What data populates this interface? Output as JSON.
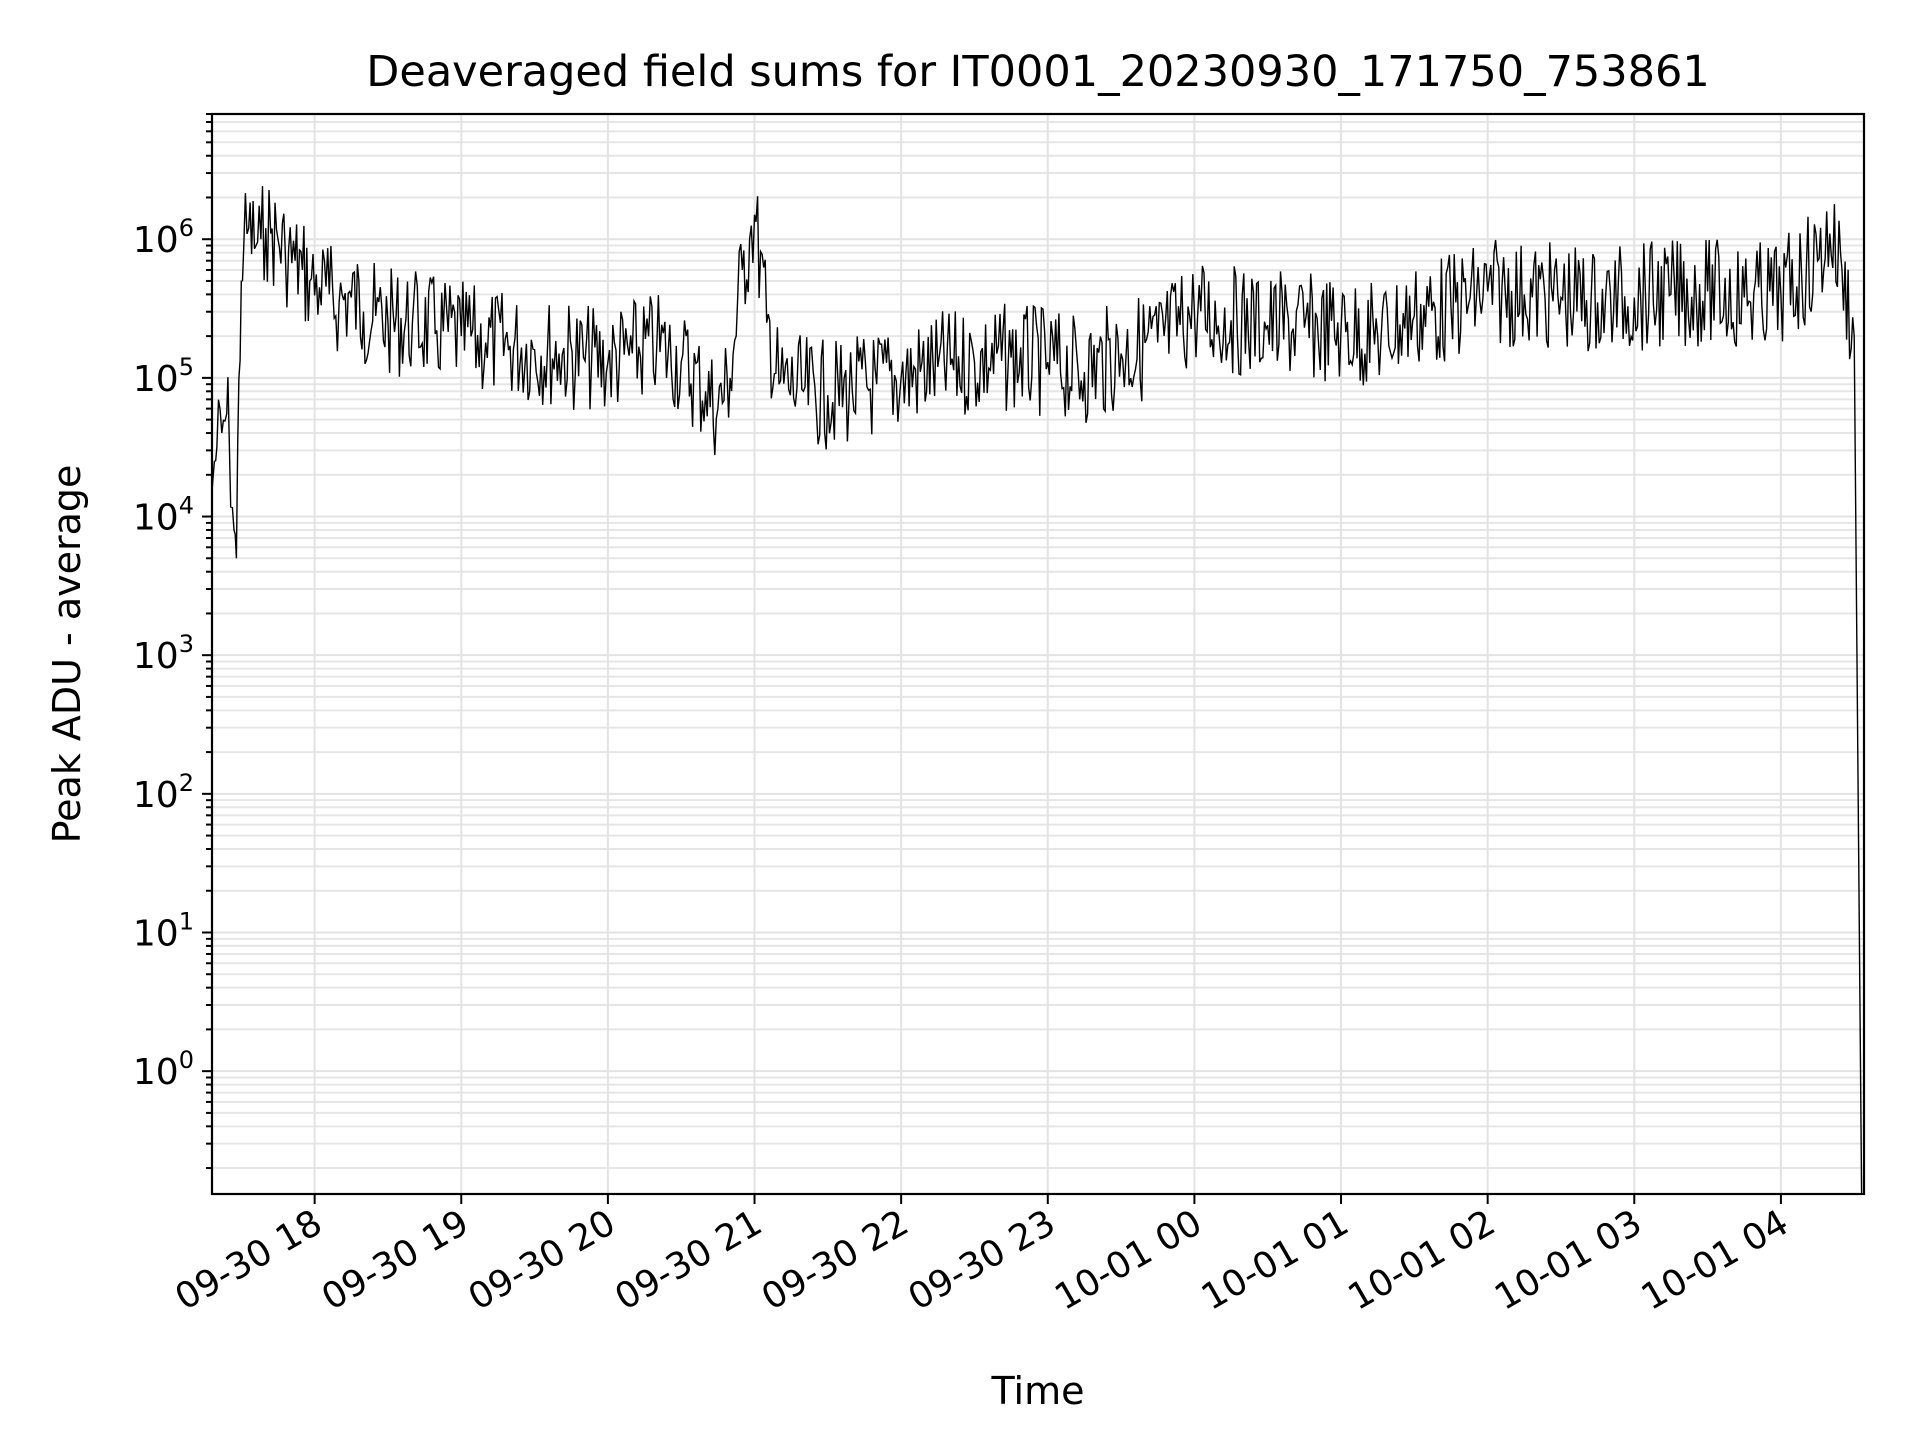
{
  "chart_data": {
    "type": "line",
    "title": "Deaveraged field sums for IT0001_20230930_171750_753861",
    "xlabel": "Time",
    "ylabel": "Peak ADU - average",
    "y_scale": "log",
    "ylim": [
      0.13,
      8000000
    ],
    "xlim": [
      "09-30 17:18",
      "10-01 04:34"
    ],
    "grid": true,
    "x_ticks": [
      "09-30 18",
      "09-30 19",
      "09-30 20",
      "09-30 21",
      "09-30 22",
      "09-30 23",
      "10-01 00",
      "10-01 01",
      "10-01 02",
      "10-01 03",
      "10-01 04"
    ],
    "y_ticks": [
      {
        "base": "10",
        "exp": "0",
        "value": 1
      },
      {
        "base": "10",
        "exp": "1",
        "value": 10
      },
      {
        "base": "10",
        "exp": "2",
        "value": 100
      },
      {
        "base": "10",
        "exp": "3",
        "value": 1000
      },
      {
        "base": "10",
        "exp": "4",
        "value": 10000
      },
      {
        "base": "10",
        "exp": "5",
        "value": 100000
      },
      {
        "base": "10",
        "exp": "6",
        "value": 1000000
      }
    ],
    "line_color": "#000000",
    "series": [
      {
        "x": [
          "09-30 17:18",
          "09-30 17:19",
          "09-30 17:20",
          "09-30 17:22",
          "09-30 17:24",
          "09-30 17:25",
          "09-30 17:27",
          "09-30 17:28",
          "09-30 17:29",
          "09-30 17:30",
          "09-30 17:31",
          "09-30 17:33",
          "09-30 17:36",
          "09-30 17:38",
          "09-30 17:40",
          "09-30 17:42",
          "09-30 17:45",
          "09-30 17:48",
          "09-30 17:52",
          "09-30 17:55",
          "09-30 17:58",
          "09-30 18:02",
          "09-30 18:06",
          "09-30 18:10",
          "09-30 18:15",
          "09-30 18:20",
          "09-30 18:25",
          "09-30 18:30",
          "09-30 18:40",
          "09-30 18:50",
          "09-30 19:00",
          "09-30 19:10",
          "09-30 19:20",
          "09-30 19:30",
          "09-30 19:40",
          "09-30 19:50",
          "09-30 20:00",
          "09-30 20:10",
          "09-30 20:20",
          "09-30 20:30",
          "09-30 20:40",
          "09-30 20:45",
          "09-30 20:50",
          "09-30 20:55",
          "09-30 20:58",
          "09-30 21:00",
          "09-30 21:05",
          "09-30 21:10",
          "09-30 21:20",
          "09-30 21:30",
          "09-30 21:40",
          "09-30 21:50",
          "09-30 22:00",
          "09-30 22:15",
          "09-30 22:30",
          "09-30 22:45",
          "09-30 23:00",
          "09-30 23:15",
          "09-30 23:30",
          "09-30 23:45",
          "10-01 00:00",
          "10-01 00:15",
          "10-01 00:30",
          "10-01 00:45",
          "10-01 01:00",
          "10-01 01:15",
          "10-01 01:30",
          "10-01 01:45",
          "10-01 02:00",
          "10-01 02:15",
          "10-01 02:30",
          "10-01 02:45",
          "10-01 03:00",
          "10-01 03:15",
          "10-01 03:30",
          "10-01 03:45",
          "10-01 04:00",
          "10-01 04:15",
          "10-01 04:20",
          "10-01 04:25",
          "10-01 04:30",
          "10-01 04:33"
        ],
        "values": [
          15000,
          25000,
          32000,
          40000,
          55000,
          40000,
          8000,
          5000,
          100000,
          500000,
          900000,
          1200000,
          900000,
          1000000,
          1200000,
          1100000,
          1000000,
          800000,
          700000,
          600000,
          500000,
          450000,
          400000,
          350000,
          380000,
          300000,
          280000,
          250000,
          250000,
          220000,
          200000,
          180000,
          170000,
          160000,
          150000,
          140000,
          130000,
          150000,
          170000,
          130000,
          80000,
          60000,
          100000,
          600000,
          1000000,
          1500000,
          250000,
          90000,
          80000,
          75000,
          80000,
          90000,
          100000,
          120000,
          130000,
          140000,
          130000,
          110000,
          150000,
          180000,
          300000,
          260000,
          240000,
          230000,
          220000,
          200000,
          280000,
          320000,
          420000,
          400000,
          380000,
          350000,
          380000,
          400000,
          420000,
          380000,
          400000,
          700000,
          1100000,
          600000,
          200000,
          0.13
        ]
      }
    ]
  }
}
